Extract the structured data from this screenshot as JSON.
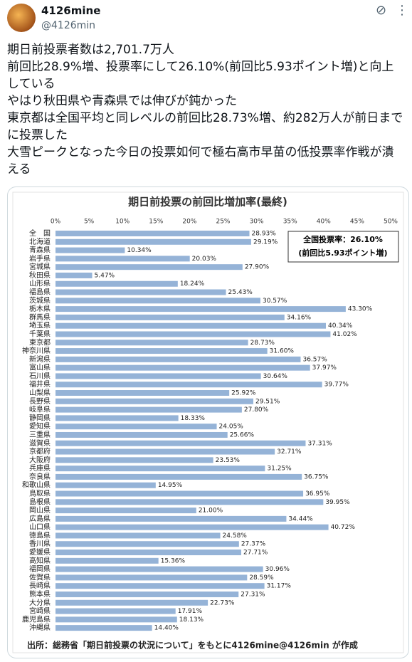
{
  "post": {
    "author": "4126mine",
    "handle": "@4126min",
    "text": [
      "期日前投票者数は2,701.7万人",
      "前回比28.9%増、投票率にして26.10%(前回比5.93ポイント増)と向上している",
      "やはり秋田県や青森県では伸びが鈍かった",
      "東京都は全国平均と同レベルの前回比28.73%増、約282万人が前日までに投票した",
      "大雪ピークとなった今日の投票如何で極右高市早苗の低投票率作戦が潰える"
    ]
  },
  "chart_data": {
    "type": "bar",
    "orientation": "horizontal",
    "title": "期日前投票の前回比増加率(最終)",
    "categories": [
      "全　国",
      "北海道",
      "青森県",
      "岩手県",
      "宮城県",
      "秋田県",
      "山形県",
      "福島県",
      "茨城県",
      "栃木県",
      "群馬県",
      "埼玉県",
      "千葉県",
      "東京都",
      "神奈川県",
      "新潟県",
      "富山県",
      "石川県",
      "福井県",
      "山梨県",
      "長野県",
      "岐阜県",
      "静岡県",
      "愛知県",
      "三重県",
      "滋賀県",
      "京都府",
      "大阪府",
      "兵庫県",
      "奈良県",
      "和歌山県",
      "鳥取県",
      "島根県",
      "岡山県",
      "広島県",
      "山口県",
      "徳島県",
      "香川県",
      "愛媛県",
      "高知県",
      "福岡県",
      "佐賀県",
      "長崎県",
      "熊本県",
      "大分県",
      "宮崎県",
      "鹿児島県",
      "沖縄県"
    ],
    "values": [
      28.93,
      29.19,
      10.34,
      20.03,
      27.9,
      5.47,
      18.24,
      25.43,
      30.57,
      43.3,
      34.16,
      40.34,
      41.02,
      28.73,
      31.6,
      36.57,
      37.97,
      30.64,
      39.77,
      25.92,
      29.51,
      27.8,
      18.33,
      24.05,
      25.66,
      37.31,
      32.71,
      23.53,
      31.25,
      36.75,
      14.95,
      36.95,
      39.95,
      21.0,
      34.44,
      40.72,
      24.58,
      27.37,
      27.71,
      15.36,
      30.96,
      28.59,
      31.17,
      27.31,
      22.73,
      17.91,
      18.13,
      14.4
    ],
    "value_labels": [
      "28.93%",
      "29.19%",
      "10.34%",
      "20.03%",
      "27.90%",
      "5.47%",
      "18.24%",
      "25.43%",
      "30.57%",
      "43.30%",
      "34.16%",
      "40.34%",
      "41.02%",
      "28.73%",
      "31.60%",
      "36.57%",
      "37.97%",
      "30.64%",
      "39.77%",
      "25.92%",
      "29.51%",
      "27.80%",
      "18.33%",
      "24.05%",
      "25.66%",
      "37.31%",
      "32.71%",
      "23.53%",
      "31.25%",
      "36.75%",
      "14.95%",
      "36.95%",
      "39.95%",
      "21.00%",
      "34.44%",
      "40.72%",
      "24.58%",
      "27.37%",
      "27.71%",
      "15.36%",
      "30.96%",
      "28.59%",
      "31.17%",
      "27.31%",
      "22.73%",
      "17.91%",
      "18.13%",
      "14.40%"
    ],
    "color": "#95b3d7",
    "xlim": [
      0,
      50
    ],
    "xticks": [
      {
        "value": 0,
        "label": "0%"
      },
      {
        "value": 5,
        "label": "5%"
      },
      {
        "value": 10,
        "label": "10%"
      },
      {
        "value": 15,
        "label": "15%"
      },
      {
        "value": 20,
        "label": "20%"
      },
      {
        "value": 25,
        "label": "25%"
      },
      {
        "value": 30,
        "label": "30%"
      },
      {
        "value": 35,
        "label": "35%"
      },
      {
        "value": 40,
        "label": "40%"
      },
      {
        "value": 45,
        "label": "45%"
      },
      {
        "value": 50,
        "label": "50%"
      }
    ],
    "grid": false,
    "annotation": [
      "全国投票率：26.10%",
      "(前回比5.93ポイント増)"
    ],
    "source": "出所：総務省「期日前投票の状況について」をもとに4126mine@4126min が作成"
  }
}
